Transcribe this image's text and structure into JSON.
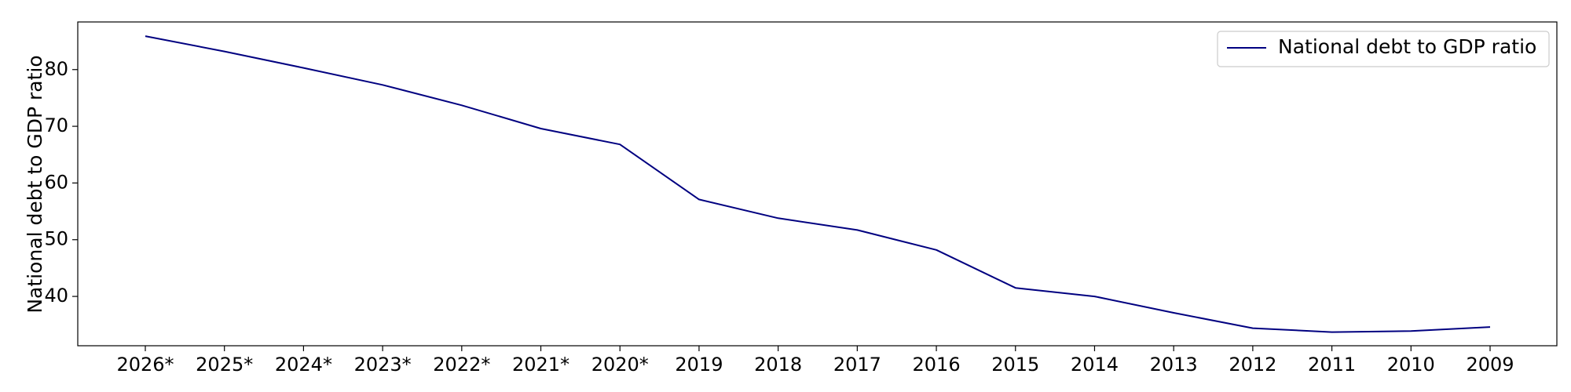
{
  "chart_data": {
    "type": "line",
    "categories": [
      "2026*",
      "2025*",
      "2024*",
      "2023*",
      "2022*",
      "2021*",
      "2020*",
      "2019",
      "2018",
      "2017",
      "2016",
      "2015",
      "2014",
      "2013",
      "2012",
      "2011",
      "2010",
      "2009"
    ],
    "series": [
      {
        "name": "National debt to GDP ratio",
        "values": [
          85.9,
          83.2,
          80.3,
          77.3,
          73.7,
          69.6,
          66.8,
          57.1,
          53.8,
          51.7,
          48.2,
          41.5,
          40.0,
          37.1,
          34.4,
          33.7,
          33.9,
          34.6
        ],
        "color": "#000080"
      }
    ],
    "ylabel": "National debt to GDP ratio",
    "xlabel": "",
    "yticks": [
      40,
      50,
      60,
      70,
      80
    ],
    "ylim": [
      31.3,
      88.4
    ],
    "grid": false,
    "legend_position": "top-right"
  }
}
